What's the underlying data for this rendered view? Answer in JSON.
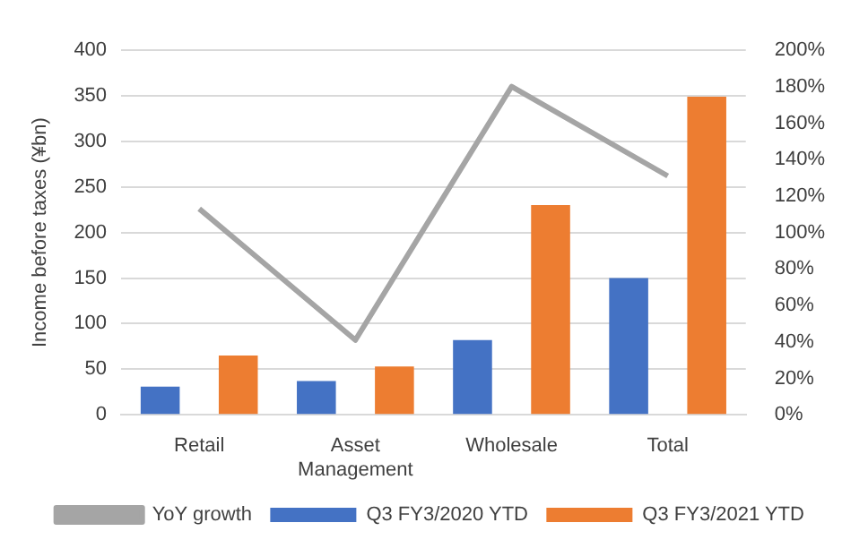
{
  "chart_data": {
    "type": "bar",
    "ylabel": "Income before taxes (¥bn)",
    "categories": [
      "Retail",
      "Asset Management",
      "Wholesale",
      "Total"
    ],
    "series": [
      {
        "name": "Q3 FY3/2020 YTD",
        "color": "#4472c4",
        "values": [
          31,
          37,
          82,
          150
        ]
      },
      {
        "name": "Q3 FY3/2021 YTD",
        "color": "#ed7d31",
        "values": [
          65,
          53,
          230,
          349
        ]
      },
      {
        "name": "YoY growth",
        "type": "line",
        "axis": "y2",
        "color": "#a5a5a5",
        "values": [
          113,
          41,
          180,
          131
        ],
        "marker": "none"
      }
    ],
    "ylim": [
      0,
      400
    ],
    "yticks": [
      0,
      50,
      100,
      150,
      200,
      250,
      300,
      350,
      400
    ],
    "y2lim": [
      0,
      200
    ],
    "y2ticks": [
      {
        "value": 0,
        "label": "0%"
      },
      {
        "value": 20,
        "label": "20%"
      },
      {
        "value": 40,
        "label": "40%"
      },
      {
        "value": 60,
        "label": "60%"
      },
      {
        "value": 80,
        "label": "80%"
      },
      {
        "value": 100,
        "label": "100%"
      },
      {
        "value": 120,
        "label": "120%"
      },
      {
        "value": 140,
        "label": "140%"
      },
      {
        "value": 160,
        "label": "160%"
      },
      {
        "value": 180,
        "label": "180%"
      },
      {
        "value": 200,
        "label": "200%"
      }
    ],
    "grid": "y",
    "legend": "bottom"
  }
}
